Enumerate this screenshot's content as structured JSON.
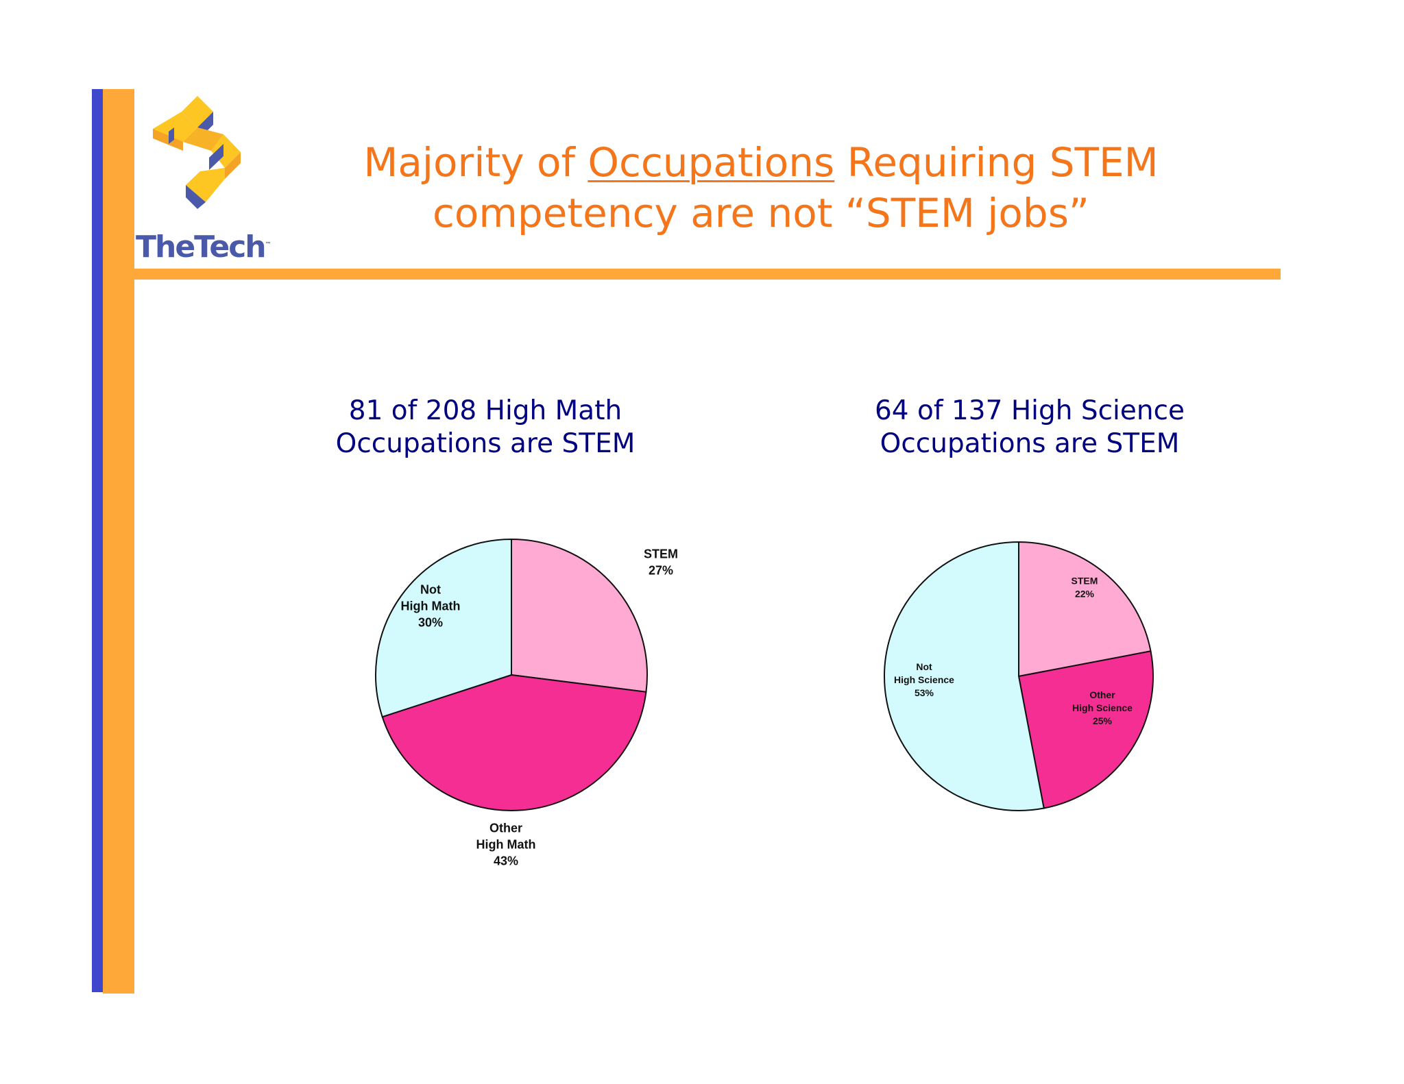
{
  "header": {
    "logo_text": "TheTech",
    "logo_tm": "™",
    "title_pre": "Majority of ",
    "title_underlined": "Occupations",
    "title_post": " Requiring STEM",
    "title_line2": "competency are not “STEM jobs”"
  },
  "colors": {
    "accent_orange": "#ffa83a",
    "accent_blue": "#3f48cc",
    "title_orange": "#f5761a",
    "subtitle_navy": "#000080",
    "stem": "#ffaad3",
    "other_high": "#f52e93",
    "not_high": "#d3fbfd"
  },
  "chart_data": [
    {
      "type": "pie",
      "title_line1": "81 of 208 High Math",
      "title_line2": "Occupations are STEM",
      "slices": [
        {
          "label": [
            "STEM",
            "27%"
          ],
          "value": 27,
          "color": "#ffaad3"
        },
        {
          "label": [
            "Other",
            "High Math",
            "43%"
          ],
          "value": 43,
          "color": "#f52e93"
        },
        {
          "label": [
            "Not",
            "High Math",
            "30%"
          ],
          "value": 30,
          "color": "#d3fbfd"
        }
      ]
    },
    {
      "type": "pie",
      "title_line1": "64 of 137 High Science",
      "title_line2": "Occupations are STEM",
      "slices": [
        {
          "label": [
            "STEM",
            "22%"
          ],
          "value": 22,
          "color": "#ffaad3"
        },
        {
          "label": [
            "Other",
            "High Science",
            "25%"
          ],
          "value": 25,
          "color": "#f52e93"
        },
        {
          "label": [
            "Not",
            "High Science",
            "53%"
          ],
          "value": 53,
          "color": "#d3fbfd"
        }
      ]
    }
  ]
}
